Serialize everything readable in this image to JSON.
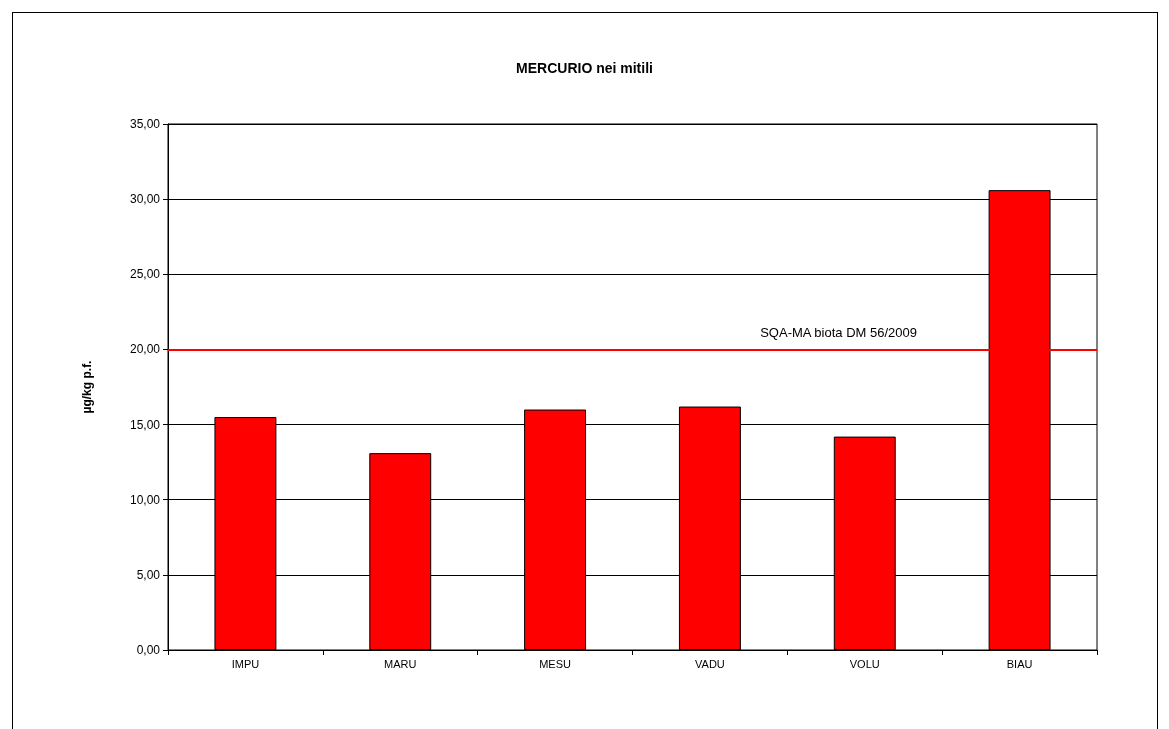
{
  "chart_data": {
    "type": "bar",
    "title": "MERCURIO nei mitili",
    "ylabel": "µg/kg p.f.",
    "categories": [
      "IMPU",
      "MARU",
      "MESU",
      "VADU",
      "VOLU",
      "BIAU"
    ],
    "values": [
      15.5,
      13.1,
      16.0,
      16.2,
      14.2,
      30.6
    ],
    "color": "#ff0000",
    "ylim": [
      0,
      35
    ],
    "yticks": [
      {
        "value": 0,
        "label": "0,00"
      },
      {
        "value": 5,
        "label": "5,00"
      },
      {
        "value": 10,
        "label": "10,00"
      },
      {
        "value": 15,
        "label": "15,00"
      },
      {
        "value": 20,
        "label": "20,00"
      },
      {
        "value": 25,
        "label": "25,00"
      },
      {
        "value": 30,
        "label": "30,00"
      },
      {
        "value": 35,
        "label": "35,00"
      }
    ],
    "ref_lines": [
      {
        "axis": "y",
        "value": 20,
        "label": "SQA-MA biota DM 56/2009",
        "color": "#ff0000"
      }
    ],
    "grid": "y"
  }
}
